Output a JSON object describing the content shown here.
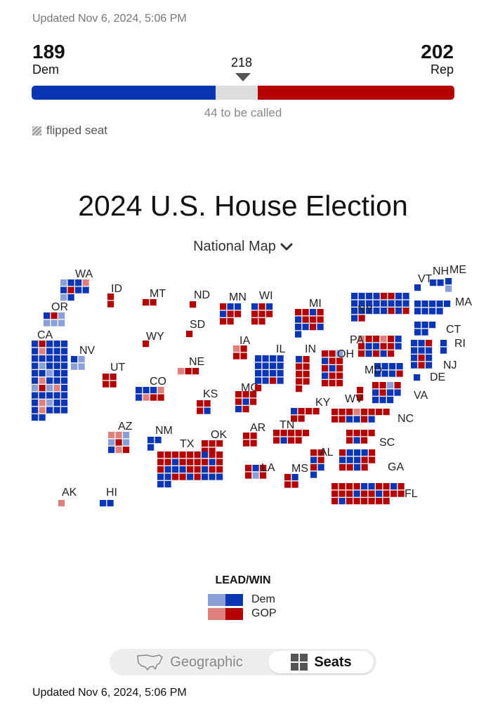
{
  "updated_top": "Updated Nov 6, 2024, 5:06 PM",
  "updated_bottom": "Updated Nov 6, 2024, 5:06 PM",
  "dem": {
    "count": "189",
    "label": "Dem"
  },
  "rep": {
    "count": "202",
    "label": "Rep"
  },
  "majority": "218",
  "called_text": "44 to be called",
  "flipped_label": "flipped seat",
  "title": "2024 U.S. House Election",
  "view_select": "National Map",
  "legend": {
    "title": "LEAD/WIN",
    "dem": "Dem",
    "gop": "GOP"
  },
  "toggle": {
    "geographic": "Geographic",
    "seats": "Seats",
    "selected": "Seats"
  },
  "colors": {
    "dem_win": "#0a36b5",
    "dem_lead": "#8a9fd8",
    "rep_win": "#b30000",
    "rep_lead": "#e0807c",
    "uncalled": "#dcdcdc"
  },
  "seat_totals": {
    "dem": 189,
    "rep": 202,
    "to_be_called": 44,
    "total": 435
  },
  "states": [
    {
      "code": "WA",
      "seats": [
        "lead_d",
        "win_d",
        "win_d",
        "lead_r",
        "win_d",
        "win_r",
        "win_d",
        "win_d",
        "lead_d",
        "win_d"
      ]
    },
    {
      "code": "OR",
      "seats": [
        "win_d",
        "win_r",
        "lead_d",
        "lead_d",
        "lead_d",
        "lead_d"
      ]
    },
    {
      "code": "CA",
      "seats": [
        "win_d",
        "win_r",
        "win_d",
        "win_d",
        "win_d",
        "win_d",
        "lead_r",
        "win_d",
        "win_d",
        "win_d",
        "win_d",
        "win_d",
        "win_d",
        "win_d",
        "win_d",
        "win_d",
        "lead_d",
        "win_d",
        "win_d",
        "win_d",
        "win_d",
        "win_d",
        "lead_d",
        "win_d",
        "win_d",
        "win_d",
        "lead_r",
        "win_d",
        "win_d",
        "win_d",
        "lead_d",
        "win_r",
        "lead_d",
        "lead_r",
        "win_d",
        "win_d",
        "win_d",
        "win_d",
        "win_d",
        "win_d",
        "win_d",
        "lead_r",
        "lead_d",
        "win_d",
        "win_d",
        "win_d",
        "lead_r",
        "win_d",
        "win_d",
        "win_d",
        "win_d",
        "win_d"
      ]
    },
    {
      "code": "NV",
      "seats": [
        "win_d",
        "lead_d",
        "lead_d",
        "lead_d"
      ]
    },
    {
      "code": "ID",
      "seats": [
        "win_r",
        "win_r"
      ]
    },
    {
      "code": "MT",
      "seats": [
        "win_r",
        "win_r"
      ]
    },
    {
      "code": "WY",
      "seats": [
        "win_r"
      ]
    },
    {
      "code": "UT",
      "seats": [
        "win_r",
        "win_r",
        "win_r",
        "win_r"
      ]
    },
    {
      "code": "AZ",
      "seats": [
        "lead_r",
        "lead_r",
        "lead_d",
        "lead_d",
        "win_r",
        "lead_d",
        "win_d",
        "lead_r",
        "win_r"
      ]
    },
    {
      "code": "CO",
      "seats": [
        "win_d",
        "win_d",
        "win_d",
        "lead_r",
        "win_d",
        "lead_r",
        "win_r",
        "win_r"
      ]
    },
    {
      "code": "NM",
      "seats": [
        "win_d",
        "win_d",
        "win_d"
      ]
    },
    {
      "code": "ND",
      "seats": [
        "win_r"
      ]
    },
    {
      "code": "SD",
      "seats": [
        "win_r"
      ]
    },
    {
      "code": "NE",
      "seats": [
        "lead_r",
        "win_r",
        "win_r"
      ]
    },
    {
      "code": "KS",
      "seats": [
        "win_r",
        "win_r",
        "win_r",
        "win_d"
      ]
    },
    {
      "code": "OK",
      "seats": [
        "win_r",
        "win_r",
        "win_r",
        "win_r",
        "win_r"
      ]
    },
    {
      "code": "TX",
      "seats": [
        "win_r",
        "win_r",
        "win_r",
        "win_r",
        "win_r",
        "win_r",
        "win_d",
        "win_r",
        "win_r",
        "win_r",
        "win_r",
        "win_d",
        "win_r",
        "win_r",
        "win_r",
        "win_r",
        "win_d",
        "win_r",
        "win_r",
        "win_d",
        "win_d",
        "win_d",
        "win_r",
        "win_r",
        "win_d",
        "win_r",
        "win_r",
        "win_d",
        "win_d",
        "win_r",
        "win_r",
        "win_d",
        "win_r",
        "win_d",
        "win_d",
        "win_d",
        "win_d",
        "win_d"
      ]
    },
    {
      "code": "MN",
      "seats": [
        "win_r",
        "win_d",
        "win_d",
        "win_d",
        "win_r",
        "win_r",
        "win_r",
        "win_r"
      ]
    },
    {
      "code": "IA",
      "seats": [
        "lead_r",
        "win_r",
        "win_r",
        "win_r"
      ]
    },
    {
      "code": "MO",
      "seats": [
        "win_r",
        "win_r",
        "win_r",
        "win_r",
        "win_d",
        "win_r",
        "win_d",
        "win_r"
      ]
    },
    {
      "code": "AR",
      "seats": [
        "win_r",
        "win_r",
        "win_r",
        "win_r"
      ]
    },
    {
      "code": "LA",
      "seats": [
        "win_r",
        "win_d",
        "win_r",
        "win_r",
        "lead_d",
        "win_r"
      ]
    },
    {
      "code": "WI",
      "seats": [
        "win_d",
        "win_r",
        "win_d",
        "win_r",
        "win_r",
        "win_r",
        "win_r",
        "win_r"
      ]
    },
    {
      "code": "IL",
      "seats": [
        "win_d",
        "win_d",
        "win_d",
        "win_d",
        "win_d",
        "win_d",
        "win_d",
        "win_d",
        "win_d",
        "win_d",
        "win_d",
        "win_d",
        "win_d",
        "win_d",
        "win_r",
        "win_d",
        "win_r"
      ]
    },
    {
      "code": "MI",
      "seats": [
        "win_r",
        "win_r",
        "win_d",
        "win_r",
        "win_d",
        "win_r",
        "win_r",
        "win_r",
        "win_d",
        "win_d",
        "win_r",
        "win_d",
        "win_d"
      ]
    },
    {
      "code": "IN",
      "seats": [
        "win_d",
        "win_r",
        "win_r",
        "win_r",
        "win_r",
        "win_r",
        "win_r",
        "win_r",
        "win_r"
      ]
    },
    {
      "code": "OH",
      "seats": [
        "win_r",
        "win_r",
        "lead_d",
        "win_d",
        "win_r",
        "win_r",
        "win_r",
        "win_d",
        "win_r",
        "win_d",
        "win_r",
        "win_r",
        "win_r",
        "win_r",
        "win_r"
      ]
    },
    {
      "code": "KY",
      "seats": [
        "win_d",
        "win_r",
        "win_r",
        "win_r",
        "win_r",
        "win_r"
      ]
    },
    {
      "code": "TN",
      "seats": [
        "win_r",
        "win_r",
        "win_r",
        "win_r",
        "win_r",
        "win_r",
        "win_d",
        "win_r",
        "win_r"
      ]
    },
    {
      "code": "MS",
      "seats": [
        "win_r",
        "win_d",
        "win_r",
        "win_r"
      ]
    },
    {
      "code": "AL",
      "seats": [
        "win_r",
        "win_r",
        "win_d",
        "win_r",
        "win_r",
        "win_d",
        "win_d"
      ]
    },
    {
      "code": "GA",
      "seats": [
        "win_r",
        "win_d",
        "win_d",
        "win_d",
        "win_r",
        "win_d",
        "win_d",
        "win_d",
        "win_r",
        "win_r",
        "win_r",
        "win_r",
        "win_d",
        "win_r"
      ]
    },
    {
      "code": "FL",
      "seats": [
        "win_r",
        "win_r",
        "win_r",
        "win_r",
        "win_d",
        "win_d",
        "win_r",
        "win_r",
        "win_d",
        "win_r",
        "win_r",
        "win_r",
        "win_r",
        "win_d",
        "win_r",
        "win_r",
        "win_d",
        "win_r",
        "win_r",
        "win_r",
        "win_r",
        "win_d",
        "win_r",
        "win_r",
        "win_r",
        "win_r",
        "win_r",
        "win_r"
      ]
    },
    {
      "code": "SC",
      "seats": [
        "win_r",
        "win_r",
        "win_r",
        "win_r",
        "win_r",
        "win_d",
        "win_r"
      ]
    },
    {
      "code": "NC",
      "seats": [
        "win_r",
        "win_r",
        "win_r",
        "lead_r",
        "win_r",
        "win_r",
        "win_r",
        "win_r",
        "win_r",
        "win_r",
        "win_d",
        "win_d",
        "win_r",
        "win_d"
      ]
    },
    {
      "code": "WV",
      "seats": [
        "win_r",
        "win_r"
      ]
    },
    {
      "code": "VA",
      "seats": [
        "win_r",
        "win_r",
        "lead_d",
        "win_r",
        "win_d",
        "win_r",
        "win_d",
        "win_d",
        "win_d",
        "win_d",
        "win_d"
      ]
    },
    {
      "code": "PA",
      "seats": [
        "lead_r",
        "win_r",
        "win_r",
        "lead_r",
        "win_r",
        "win_d",
        "win_r",
        "win_d",
        "win_d",
        "win_r",
        "win_r",
        "win_d",
        "win_r",
        "win_d",
        "win_r",
        "win_d",
        "win_r"
      ]
    },
    {
      "code": "MD",
      "seats": [
        "win_d",
        "win_d",
        "win_d",
        "win_d",
        "win_d",
        "win_d",
        "win_d",
        "win_r"
      ]
    },
    {
      "code": "DE",
      "seats": [
        "win_d"
      ]
    },
    {
      "code": "NJ",
      "seats": [
        "win_d",
        "win_d",
        "win_r",
        "win_d",
        "win_d",
        "win_d",
        "win_d",
        "win_r",
        "win_d",
        "win_d",
        "win_r",
        "win_d"
      ]
    },
    {
      "code": "NY",
      "seats": [
        "win_d",
        "win_d",
        "win_d",
        "win_d",
        "win_r",
        "win_r",
        "win_d",
        "win_d",
        "win_d",
        "win_d",
        "win_d",
        "win_d",
        "win_d",
        "win_d",
        "win_d",
        "win_d",
        "win_d",
        "win_d",
        "win_d",
        "win_d",
        "win_d",
        "win_r",
        "win_d",
        "win_r",
        "win_d",
        "win_r"
      ]
    },
    {
      "code": "CT",
      "seats": [
        "win_d",
        "win_d",
        "win_d",
        "win_d",
        "win_d"
      ]
    },
    {
      "code": "RI",
      "seats": [
        "win_d",
        "win_d"
      ]
    },
    {
      "code": "MA",
      "seats": [
        "win_d",
        "win_d",
        "win_d",
        "win_d",
        "win_d",
        "win_d",
        "win_d",
        "win_d",
        "win_d"
      ]
    },
    {
      "code": "VT",
      "seats": [
        "win_d"
      ]
    },
    {
      "code": "NH",
      "seats": [
        "win_d",
        "win_d"
      ]
    },
    {
      "code": "ME",
      "seats": [
        "win_d",
        "lead_d"
      ]
    },
    {
      "code": "AK",
      "seats": [
        "lead_r"
      ]
    },
    {
      "code": "HI",
      "seats": [
        "win_d",
        "win_d"
      ]
    }
  ]
}
